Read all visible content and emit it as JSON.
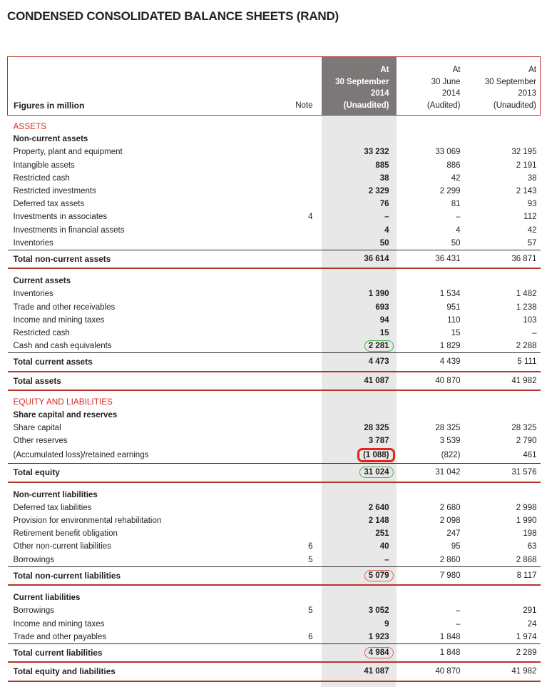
{
  "title": "CONDENSED CONSOLIDATED BALANCE SHEETS (RAND)",
  "colors": {
    "rule_red": "#b5352b",
    "section_red": "#d22d26",
    "header_column_gray": "#7d7878",
    "body_column_gray": "#e9e8e8",
    "annotation_green": "#3eb549",
    "annotation_red_thick": "#e8231d",
    "annotation_red_thin": "#d4675f"
  },
  "table": {
    "header": {
      "figures_label": "Figures in million",
      "note_label": "Note",
      "columns": [
        {
          "highlight": true,
          "lines": [
            "At",
            "30 September",
            "2014",
            "(Unaudited)"
          ]
        },
        {
          "highlight": false,
          "lines": [
            "At",
            "30 June",
            "2014",
            "(Audited)"
          ]
        },
        {
          "highlight": false,
          "lines": [
            "At",
            "30 September",
            "2013",
            "(Unaudited)"
          ]
        }
      ]
    },
    "rows": [
      {
        "type": "section",
        "label": "ASSETS"
      },
      {
        "type": "subhead",
        "label": "Non-current assets"
      },
      {
        "type": "item",
        "label": "Property, plant and equipment",
        "values": [
          "33 232",
          "33 069",
          "32 195"
        ]
      },
      {
        "type": "item",
        "label": "Intangible assets",
        "values": [
          "885",
          "886",
          "2 191"
        ]
      },
      {
        "type": "item",
        "label": "Restricted cash",
        "values": [
          "38",
          "42",
          "38"
        ]
      },
      {
        "type": "item",
        "label": "Restricted investments",
        "values": [
          "2 329",
          "2 299",
          "2 143"
        ]
      },
      {
        "type": "item",
        "label": "Deferred tax assets",
        "values": [
          "76",
          "81",
          "93"
        ]
      },
      {
        "type": "item",
        "label": "Investments in associates",
        "note": "4",
        "values": [
          "–",
          "–",
          "112"
        ]
      },
      {
        "type": "item",
        "label": "Investments in financial assets",
        "values": [
          "4",
          "4",
          "42"
        ]
      },
      {
        "type": "item",
        "label": "Inventories",
        "values": [
          "50",
          "50",
          "57"
        ]
      },
      {
        "type": "total",
        "label": "Total non-current assets",
        "values": [
          "36 614",
          "36 431",
          "36 871"
        ]
      },
      {
        "type": "subhead",
        "label": "Current assets"
      },
      {
        "type": "item",
        "label": "Inventories",
        "values": [
          "1 390",
          "1 534",
          "1 482"
        ]
      },
      {
        "type": "item",
        "label": "Trade and other receivables",
        "values": [
          "693",
          "951",
          "1 238"
        ]
      },
      {
        "type": "item",
        "label": "Income and mining taxes",
        "values": [
          "94",
          "110",
          "103"
        ]
      },
      {
        "type": "item",
        "label": "Restricted cash",
        "values": [
          "15",
          "15",
          "–"
        ]
      },
      {
        "type": "item",
        "label": "Cash and cash equivalents",
        "values": [
          "2 281",
          "1 829",
          "2 288"
        ],
        "box": "green"
      },
      {
        "type": "total",
        "label": "Total current assets",
        "values": [
          "4 473",
          "4 439",
          "5 111"
        ]
      },
      {
        "type": "grandtotal",
        "label": "Total assets",
        "values": [
          "41 087",
          "40 870",
          "41 982"
        ]
      },
      {
        "type": "section",
        "label": "EQUITY AND LIABILITIES"
      },
      {
        "type": "subhead",
        "label": "Share capital and reserves"
      },
      {
        "type": "item",
        "label": "Share capital",
        "values": [
          "28 325",
          "28 325",
          "28 325"
        ]
      },
      {
        "type": "item",
        "label": "Other reserves",
        "values": [
          "3 787",
          "3 539",
          "2 790"
        ]
      },
      {
        "type": "item",
        "label": "(Accumulated loss)/retained earnings",
        "values": [
          "(1 088)",
          "(822)",
          "461"
        ],
        "box": "red-thick"
      },
      {
        "type": "total",
        "label": "Total equity",
        "values": [
          "31 024",
          "31 042",
          "31 576"
        ],
        "box": "green"
      },
      {
        "type": "subhead",
        "label": "Non-current liabilities"
      },
      {
        "type": "item",
        "label": "Deferred tax liabilities",
        "values": [
          "2 640",
          "2 680",
          "2 998"
        ]
      },
      {
        "type": "item",
        "label": "Provision for environmental rehabilitation",
        "values": [
          "2 148",
          "2 098",
          "1 990"
        ]
      },
      {
        "type": "item",
        "label": "Retirement benefit obligation",
        "values": [
          "251",
          "247",
          "198"
        ]
      },
      {
        "type": "item",
        "label": "Other non-current liabilities",
        "note": "6",
        "values": [
          "40",
          "95",
          "63"
        ]
      },
      {
        "type": "item",
        "label": "Borrowings",
        "note": "5",
        "values": [
          "–",
          "2 860",
          "2 868"
        ]
      },
      {
        "type": "total",
        "label": "Total non-current liabilities",
        "values": [
          "5 079",
          "7 980",
          "8 117"
        ],
        "box": "red-thin"
      },
      {
        "type": "subhead",
        "label": "Current liabilities"
      },
      {
        "type": "item",
        "label": "Borrowings",
        "note": "5",
        "values": [
          "3 052",
          "–",
          "291"
        ]
      },
      {
        "type": "item",
        "label": "Income and mining taxes",
        "values": [
          "9",
          "–",
          "24"
        ]
      },
      {
        "type": "item",
        "label": "Trade and other payables",
        "note": "6",
        "values": [
          "1 923",
          "1 848",
          "1 974"
        ]
      },
      {
        "type": "total",
        "label": "Total current liabilities",
        "values": [
          "4 984",
          "1 848",
          "2 289"
        ],
        "box": "red-thin"
      },
      {
        "type": "grandtotal",
        "label": "Total equity and liabilities",
        "values": [
          "41 087",
          "40 870",
          "41 982"
        ]
      }
    ]
  }
}
